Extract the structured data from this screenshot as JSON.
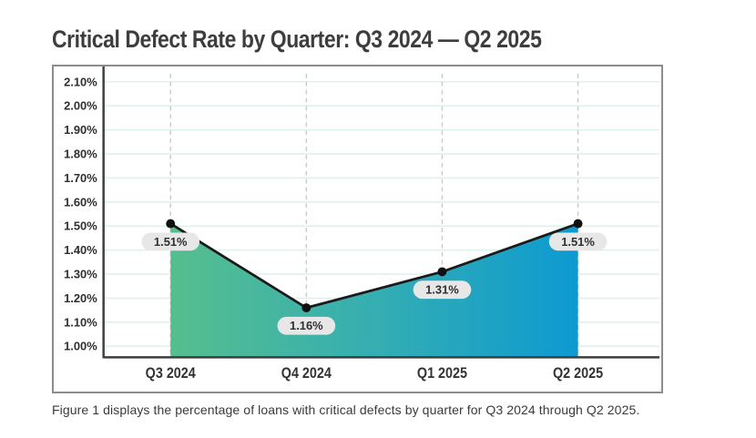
{
  "title": "Critical Defect Rate by Quarter: Q3 2024 — Q2 2025",
  "caption": "Figure 1 displays the percentage of loans with critical defects by quarter for Q3 2024 through Q2 2025.",
  "chart_data": {
    "type": "area",
    "title": "Critical Defect Rate by Quarter: Q3 2024 — Q2 2025",
    "categories": [
      "Q3 2024",
      "Q4 2024",
      "Q1 2025",
      "Q2 2025"
    ],
    "values": [
      1.51,
      1.16,
      1.31,
      1.51
    ],
    "point_labels": [
      "1.51%",
      "1.16%",
      "1.31%",
      "1.51%"
    ],
    "xlabel": "",
    "ylabel": "",
    "ylim": [
      1.0,
      2.1
    ],
    "y_tick_labels": [
      "2.10%",
      "2.00%",
      "1.90%",
      "1.80%",
      "1.70%",
      "1.60%",
      "1.50%",
      "1.40%",
      "1.30%",
      "1.20%",
      "1.10%",
      "1.00%"
    ],
    "y_tick_values": [
      2.1,
      2.0,
      1.9,
      1.8,
      1.7,
      1.6,
      1.5,
      1.4,
      1.3,
      1.2,
      1.1,
      1.0
    ],
    "grid": true,
    "legend": false,
    "colors": {
      "gradient_start": "#56be8e",
      "gradient_mid": "#35aeb2",
      "gradient_end": "#0d9ad1",
      "line": "#1a1a1a",
      "point": "#111111",
      "gridline": "#ddf0e9",
      "dashed_guide": "#cccccc",
      "axis": "#3f3f3f",
      "pill_bg": "#e7e7e7",
      "pill_text": "#2f2f2f",
      "tick_text": "#2e2e2e",
      "x_label_text": "#333333"
    }
  }
}
